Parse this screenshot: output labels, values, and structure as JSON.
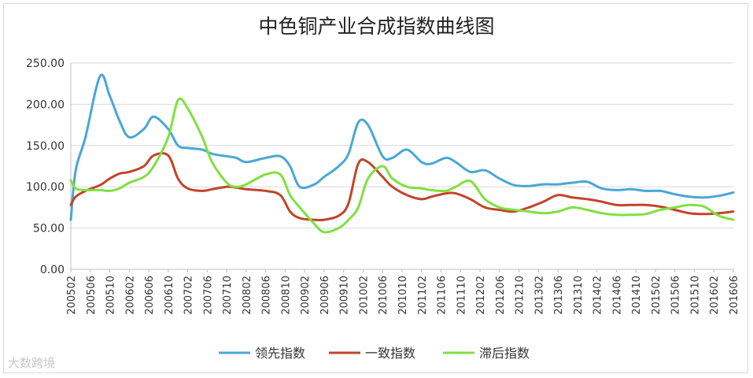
{
  "chart_data": {
    "type": "line",
    "title": "中色铜产业合成指数曲线图",
    "ylim": [
      0,
      250
    ],
    "yticks": [
      "0.00",
      "50.00",
      "100.00",
      "150.00",
      "200.00",
      "250.00"
    ],
    "grid": true,
    "legend_position": "bottom",
    "x_tick_labels": [
      "200502",
      "200506",
      "200510",
      "200602",
      "200606",
      "200610",
      "200702",
      "200706",
      "200710",
      "200802",
      "200806",
      "200810",
      "200902",
      "200906",
      "200910",
      "201002",
      "201006",
      "201010",
      "201102",
      "201106",
      "201110",
      "201202",
      "201206",
      "201210",
      "201302",
      "201306",
      "201310",
      "201402",
      "201406",
      "201410",
      "201502",
      "201506",
      "201510",
      "201602",
      "201606"
    ],
    "anchor_months": [
      "2005-02",
      "2005-03",
      "2005-05",
      "2005-08",
      "2005-10",
      "2005-12",
      "2006-02",
      "2006-05",
      "2006-07",
      "2006-10",
      "2006-12",
      "2007-02",
      "2007-05",
      "2007-07",
      "2007-10",
      "2007-12",
      "2008-02",
      "2008-06",
      "2008-09",
      "2008-11",
      "2009-01",
      "2009-04",
      "2009-06",
      "2009-09",
      "2009-11",
      "2010-01",
      "2010-03",
      "2010-06",
      "2010-08",
      "2010-11",
      "2011-02",
      "2011-04",
      "2011-07",
      "2011-09",
      "2011-12",
      "2012-03",
      "2012-06",
      "2012-09",
      "2012-12",
      "2013-03",
      "2013-06",
      "2013-09",
      "2013-12",
      "2014-03",
      "2014-06",
      "2014-09",
      "2014-12",
      "2015-03",
      "2015-06",
      "2015-09",
      "2015-12",
      "2016-03",
      "2016-06"
    ],
    "series": [
      {
        "name": "领先指数",
        "color": "#4aa7d4",
        "values": [
          60,
          120,
          160,
          234,
          210,
          180,
          160,
          170,
          185,
          170,
          150,
          147,
          145,
          140,
          137,
          135,
          130,
          135,
          137,
          125,
          100,
          103,
          112,
          125,
          140,
          178,
          175,
          137,
          135,
          145,
          130,
          128,
          135,
          130,
          118,
          120,
          110,
          102,
          101,
          103,
          103,
          105,
          106,
          98,
          96,
          97,
          95,
          95,
          91,
          88,
          87,
          89,
          93
        ]
      },
      {
        "name": "一致指数",
        "color": "#c0452a",
        "values": [
          78,
          88,
          95,
          102,
          110,
          116,
          118,
          125,
          138,
          138,
          110,
          98,
          95,
          97,
          100,
          99,
          97,
          95,
          90,
          70,
          62,
          60,
          60,
          65,
          80,
          128,
          130,
          112,
          100,
          90,
          85,
          88,
          92,
          92,
          85,
          75,
          72,
          70,
          75,
          82,
          90,
          87,
          85,
          82,
          78,
          78,
          78,
          76,
          72,
          68,
          67,
          68,
          70
        ]
      },
      {
        "name": "滞后指数",
        "color": "#80e040",
        "values": [
          108,
          98,
          96,
          96,
          95,
          98,
          105,
          112,
          125,
          160,
          205,
          195,
          160,
          130,
          105,
          100,
          103,
          115,
          115,
          90,
          75,
          55,
          45,
          50,
          60,
          75,
          110,
          125,
          110,
          100,
          98,
          96,
          95,
          100,
          107,
          85,
          75,
          72,
          70,
          68,
          70,
          75,
          72,
          68,
          66,
          66,
          67,
          72,
          75,
          78,
          76,
          65,
          60
        ]
      }
    ]
  },
  "watermark": "大数跨境"
}
